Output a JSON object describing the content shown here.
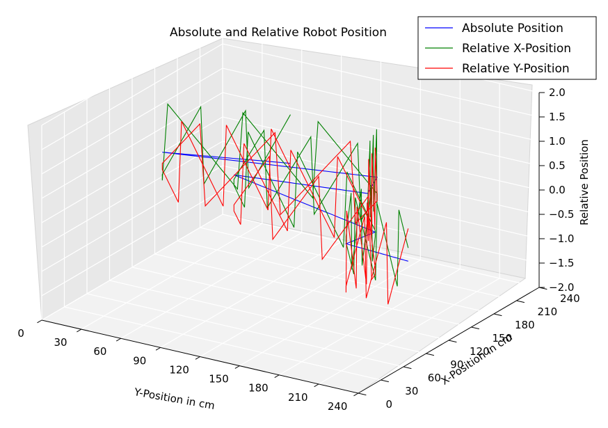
{
  "chart_data": {
    "type": "line",
    "title": "Absolute and Relative Robot Position",
    "xlabel": "Y-Position in cm",
    "ylabel": "X-Position in cm",
    "zlabel": "Relative Position",
    "xticks": [
      "0",
      "30",
      "60",
      "90",
      "120",
      "150",
      "180",
      "210",
      "240"
    ],
    "yticks": [
      "0",
      "30",
      "60",
      "90",
      "120",
      "150",
      "180",
      "210",
      "240"
    ],
    "zticks": [
      "−2.0",
      "−1.5",
      "−1.0",
      "−0.5",
      "0.0",
      "0.5",
      "1.0",
      "1.5",
      "2.0"
    ],
    "xlim": [
      0,
      240
    ],
    "ylim": [
      0,
      240
    ],
    "zlim": [
      -2,
      2
    ],
    "grid": true,
    "legend_position": "top-right",
    "series": [
      {
        "name": "Absolute Position",
        "color": "#0000ff"
      },
      {
        "name": "Relative X-Position",
        "color": "#008000"
      },
      {
        "name": "Relative Y-Position",
        "color": "#ff0000"
      }
    ]
  }
}
